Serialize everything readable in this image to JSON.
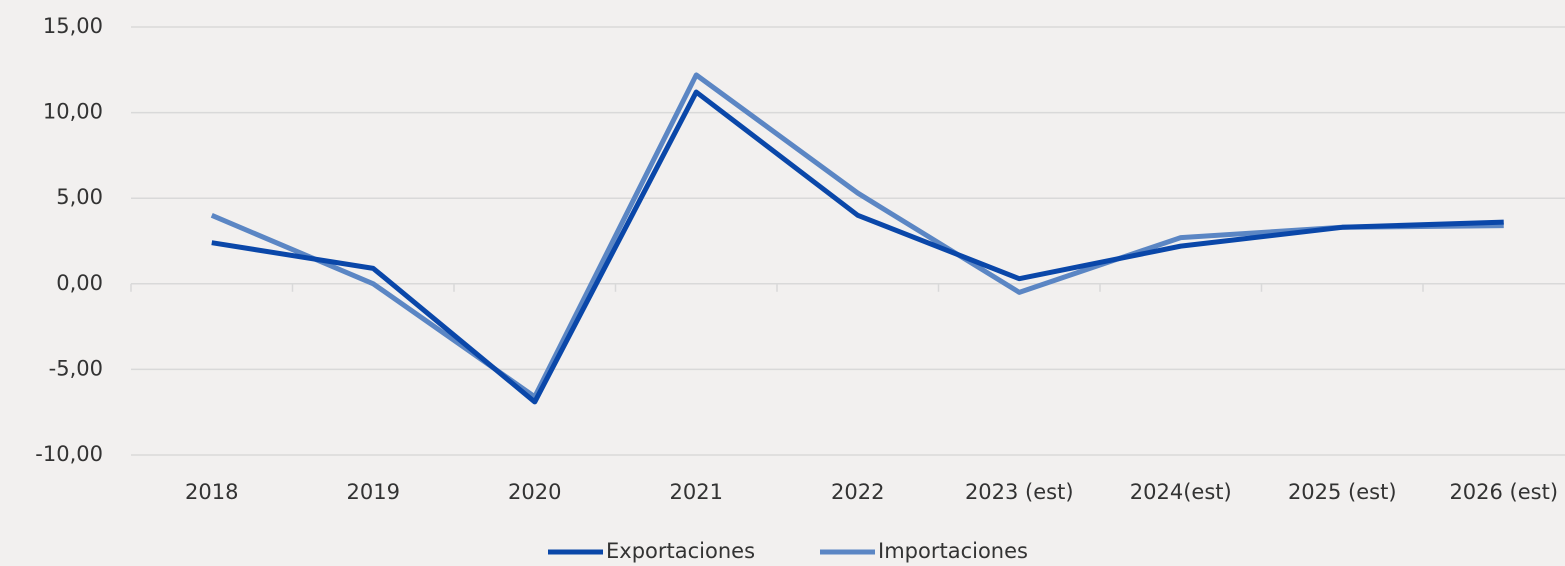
{
  "chart_data": {
    "type": "line",
    "categories": [
      "2018",
      "2019",
      "2020",
      "2021",
      "2022",
      "2023 (est)",
      "2024(est)",
      "2025 (est)",
      "2026 (est)"
    ],
    "series": [
      {
        "name": "Exportaciones",
        "color": "#0a47a9",
        "values": [
          2.4,
          0.9,
          -6.9,
          11.2,
          4.0,
          0.3,
          2.2,
          3.3,
          3.6
        ]
      },
      {
        "name": "Importaciones",
        "color": "#5b86c4",
        "values": [
          4.0,
          0.0,
          -6.6,
          12.2,
          5.3,
          -0.5,
          2.7,
          3.3,
          3.4
        ]
      }
    ],
    "ylim": [
      -10,
      15
    ],
    "yticks": [
      {
        "value": -10,
        "label": "-10,00"
      },
      {
        "value": -5,
        "label": "-5,00"
      },
      {
        "value": 0,
        "label": "0,00"
      },
      {
        "value": 5,
        "label": "5,00"
      },
      {
        "value": 10,
        "label": "10,00"
      },
      {
        "value": 15,
        "label": "15,00"
      }
    ],
    "grid": true,
    "legend": "bottom"
  }
}
